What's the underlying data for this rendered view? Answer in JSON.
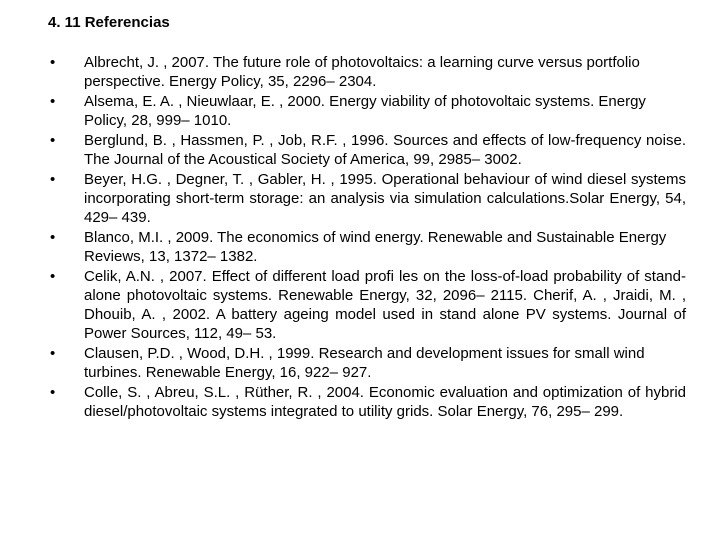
{
  "heading": "4. 11 Referencias",
  "bullet_char": "•",
  "text_color": "#000000",
  "background_color": "#ffffff",
  "font_size_pt": 11,
  "references": [
    {
      "text": "Albrecht, J. , 2007. The future role of photovoltaics: a learning curve versus portfolio perspective. Energy Policy, 35, 2296– 2304.",
      "justify": false
    },
    {
      "text": "Alsema, E. A. , Nieuwlaar, E. , 2000. Energy viability of photovoltaic systems. Energy Policy, 28, 999– 1010.",
      "justify": false
    },
    {
      "text": "Berglund, B. , Hassmen, P. , Job, R.F. , 1996. Sources and effects of low-frequency noise. The Journal of the Acoustical Society of America, 99, 2985– 3002.",
      "justify": true
    },
    {
      "text": "Beyer, H.G. , Degner, T. , Gabler, H. , 1995. Operational behaviour of wind diesel systems incorporating short-term storage: an analysis via simulation calculations.Solar Energy, 54, 429– 439.",
      "justify": true
    },
    {
      "text": "Blanco, M.I. , 2009. The economics of wind energy. Renewable and Sustainable Energy Reviews, 13, 1372– 1382.",
      "justify": false
    },
    {
      "text": "Celik, A.N. , 2007. Effect of different load profi les on the loss-of-load probability of stand-alone photovoltaic systems. Renewable Energy, 32, 2096– 2115. Cherif, A. , Jraidi, M. , Dhouib, A. , 2002. A battery ageing model used in stand alone PV systems. Journal of Power Sources, 112, 49– 53.",
      "justify": true
    },
    {
      "text": "Clausen, P.D. , Wood, D.H. , 1999. Research and development issues for small wind turbines. Renewable Energy, 16, 922– 927.",
      "justify": false
    },
    {
      "text": "Colle, S. , Abreu, S.L. , Rüther, R. , 2004. Economic evaluation and optimization of hybrid diesel/photovoltaic systems integrated to utility grids. Solar Energy, 76, 295– 299.",
      "justify": true
    }
  ]
}
